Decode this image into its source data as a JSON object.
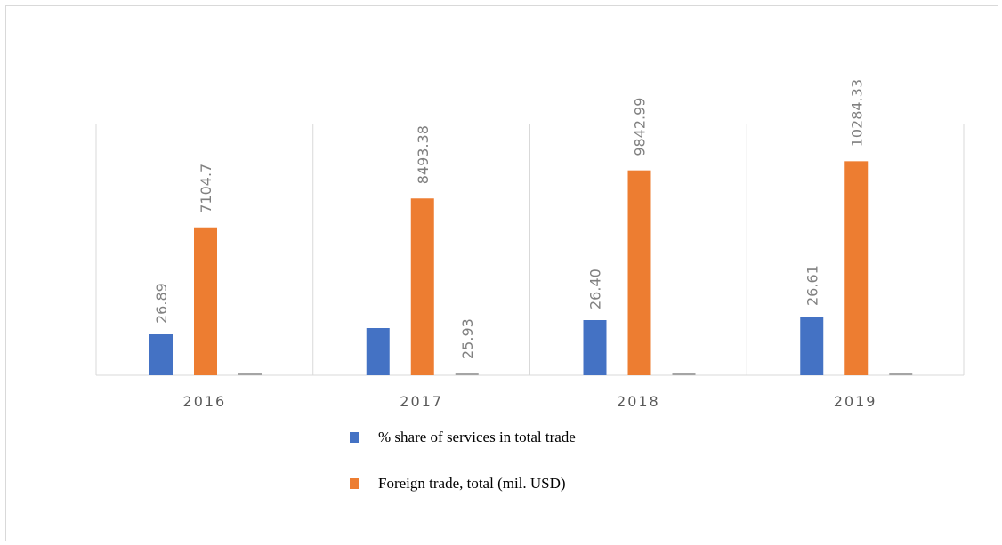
{
  "chart_data": {
    "type": "bar",
    "categories": [
      "2016",
      "2017",
      "2018",
      "2019"
    ],
    "series": [
      {
        "name": "% share of services in total trade",
        "color": "#4472C4",
        "values": [
          26.89,
          25.93,
          26.4,
          26.61
        ],
        "labels": [
          "26.89",
          "25.93",
          "26.40",
          "26.61"
        ]
      },
      {
        "name": "Foreign trade, total (mil. USD)",
        "color": "#ED7D31",
        "values": [
          7104.7,
          8493.38,
          9842.99,
          10284.33
        ],
        "labels": [
          "7104.7",
          "8493.38",
          "9842.99",
          "10284.33"
        ]
      }
    ],
    "title": "",
    "xlabel": "",
    "ylabel": "",
    "grid": "vertical category separators",
    "legend_position": "bottom"
  }
}
